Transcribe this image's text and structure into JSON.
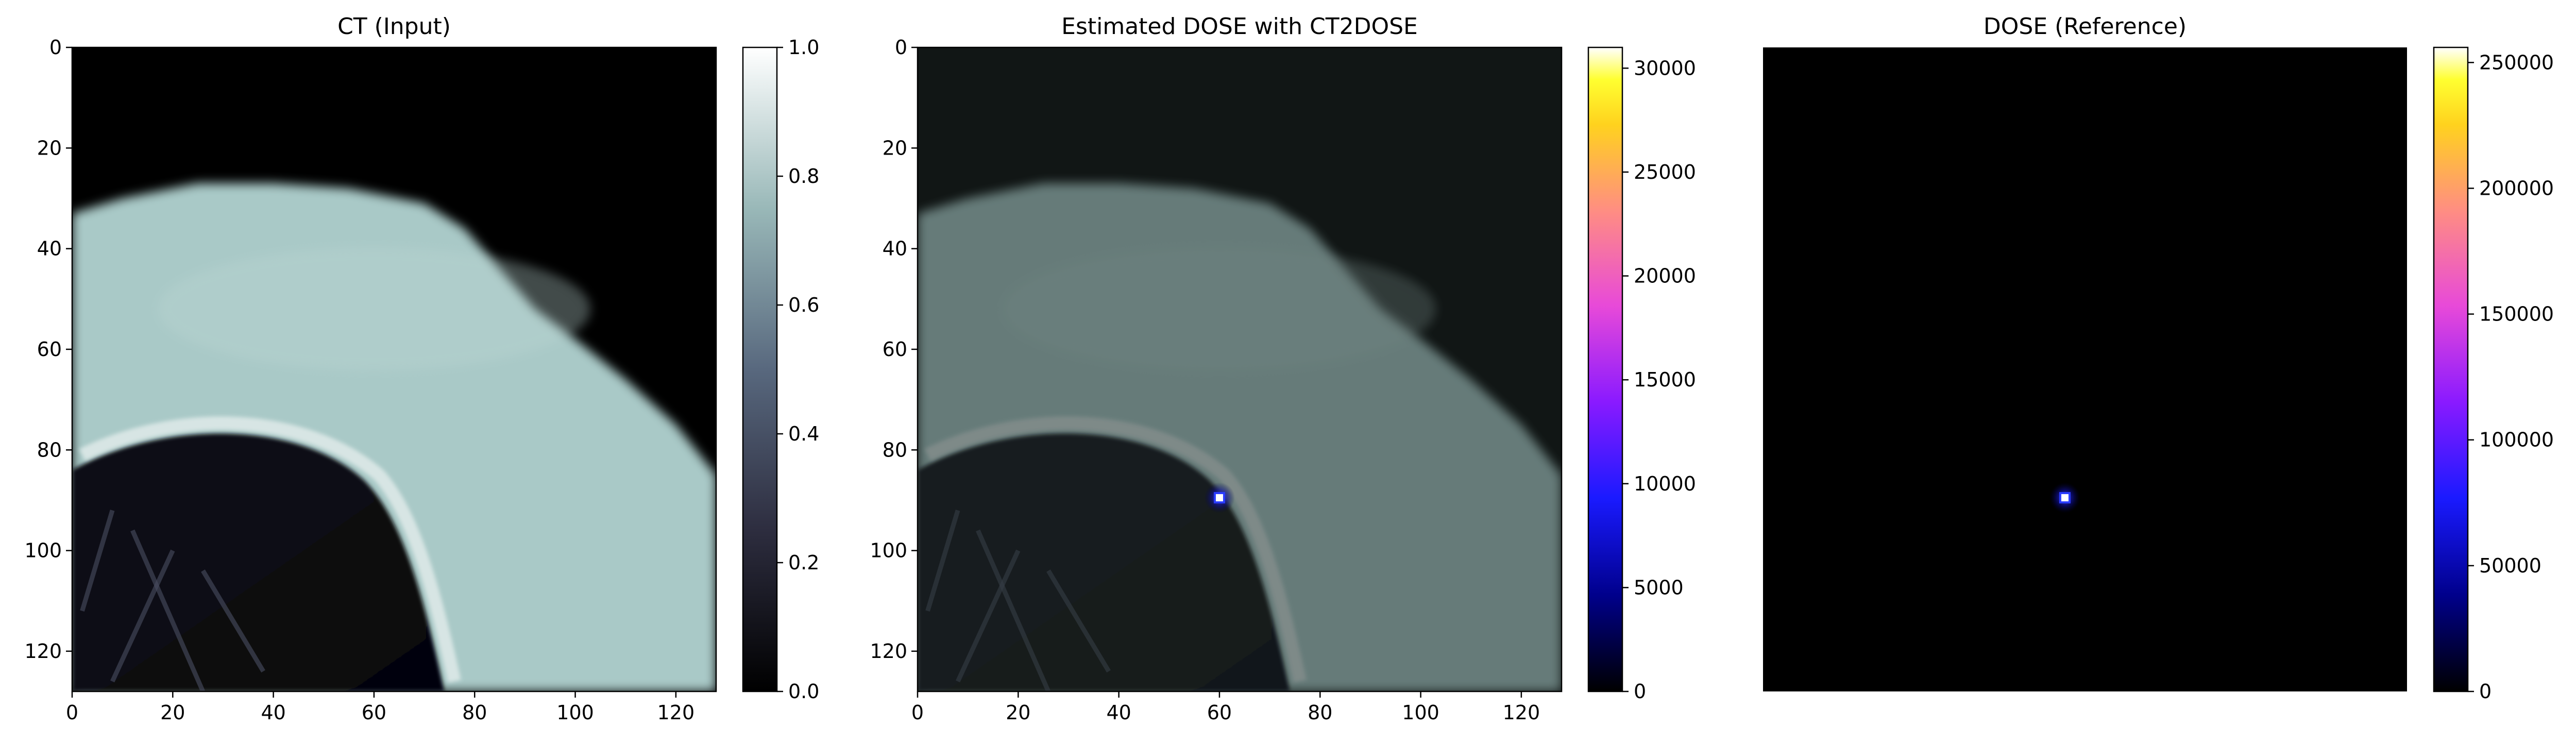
{
  "figure": {
    "panels": [
      {
        "title": "CT (Input)",
        "colormap": "bone",
        "has_xaxis": true,
        "has_yaxis": true,
        "show_ct": true,
        "ct_dim": 1.0,
        "dose_overlay": false,
        "dose_spot": false
      },
      {
        "title": "Estimated DOSE with CT2DOSE",
        "colormap": "gnuplot2",
        "has_xaxis": true,
        "has_yaxis": true,
        "show_ct": true,
        "ct_dim": 0.62,
        "dose_overlay": true,
        "dose_spot": true
      },
      {
        "title": "DOSE (Reference)",
        "colormap": "gnuplot2",
        "has_xaxis": false,
        "has_yaxis": false,
        "show_ct": false,
        "ct_dim": 0,
        "dose_overlay": false,
        "dose_spot": true
      }
    ],
    "colors": {
      "ct_dark": "#000000",
      "ct_tissue": "#a9c9c7",
      "ct_bone_edge": "#e7efee",
      "dose_spot_core": "#ffffff",
      "dose_spot_ring": "#2a3cff"
    }
  },
  "chart_data": [
    {
      "type": "heatmap",
      "title": "CT (Input)",
      "x_range": [
        0,
        128
      ],
      "y_range": [
        0,
        128
      ],
      "y_inverted": true,
      "x_ticks": [
        0,
        20,
        40,
        60,
        80,
        100,
        120
      ],
      "y_ticks": [
        0,
        20,
        40,
        60,
        80,
        100,
        120
      ],
      "colorbar": {
        "colormap": "bone",
        "range": [
          0.0,
          1.0
        ],
        "ticks": [
          "0.0",
          "0.2",
          "0.4",
          "0.6",
          "0.8",
          "1.0"
        ]
      }
    },
    {
      "type": "heatmap",
      "title": "Estimated DOSE with CT2DOSE",
      "x_range": [
        0,
        128
      ],
      "y_range": [
        0,
        128
      ],
      "y_inverted": true,
      "x_ticks": [
        0,
        20,
        40,
        60,
        80,
        100,
        120
      ],
      "y_ticks": [
        0,
        20,
        40,
        60,
        80,
        100,
        120
      ],
      "dose_peak": {
        "x": 60,
        "y": 89.5
      },
      "colorbar": {
        "colormap": "gnuplot2",
        "range": [
          0,
          31000
        ],
        "ticks": [
          "0",
          "5000",
          "10000",
          "15000",
          "20000",
          "25000",
          "30000"
        ]
      }
    },
    {
      "type": "heatmap",
      "title": "DOSE (Reference)",
      "x_range": [
        0,
        128
      ],
      "y_range": [
        0,
        128
      ],
      "y_inverted": true,
      "axes": "off",
      "dose_peak": {
        "x": 60,
        "y": 89.5
      },
      "colorbar": {
        "colormap": "gnuplot2",
        "range": [
          0,
          256000
        ],
        "ticks": [
          "0",
          "50000",
          "100000",
          "150000",
          "200000",
          "250000"
        ]
      }
    }
  ]
}
